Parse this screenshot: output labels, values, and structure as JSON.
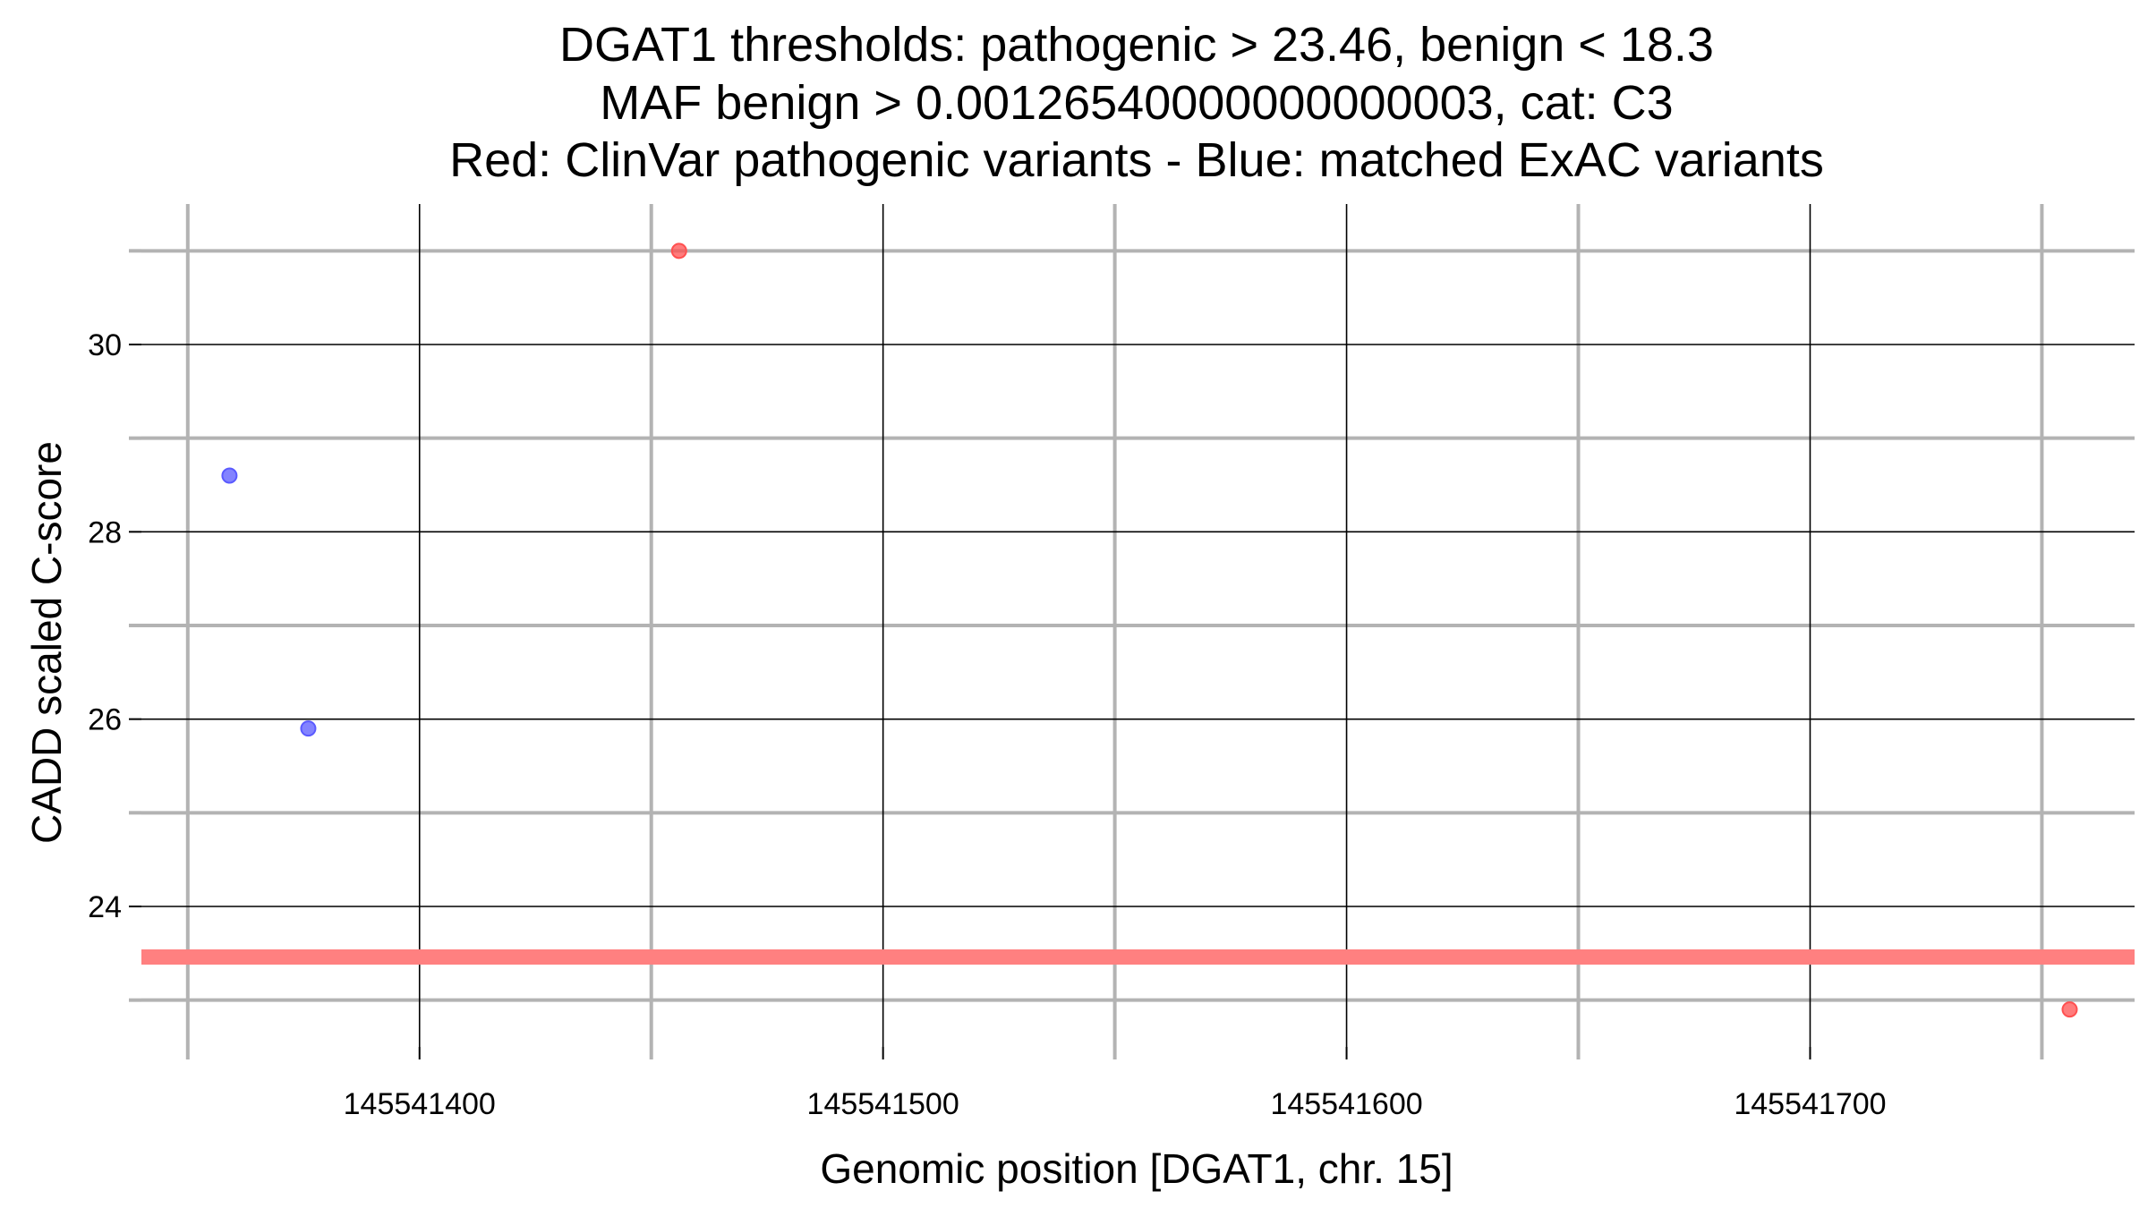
{
  "chart_data": {
    "type": "scatter",
    "title_lines": [
      "DGAT1 thresholds: pathogenic > 23.46, benign < 18.3",
      "MAF benign > 0.00126540000000000003, cat: C3",
      "Red: ClinVar pathogenic variants - Blue: matched ExAC variants"
    ],
    "xlabel": "Genomic position [DGAT1, chr. 15]",
    "ylabel": "CADD scaled C-score",
    "xlim": [
      145541340,
      145541770
    ],
    "ylim": [
      22.5,
      31.5
    ],
    "x_ticks": [
      145541400,
      145541500,
      145541600,
      145541700
    ],
    "x_tick_labels": [
      "145541400",
      "145541500",
      "145541600",
      "145541700"
    ],
    "x_minor_ticks": [
      145541350,
      145541450,
      145541550,
      145541650,
      145541750
    ],
    "y_ticks": [
      24,
      26,
      28,
      30
    ],
    "y_tick_labels": [
      "24",
      "26",
      "28",
      "30"
    ],
    "y_minor_ticks": [
      23,
      25,
      27,
      29,
      31
    ],
    "grid": true,
    "threshold_line": {
      "y": 23.46,
      "color": "#ff8080"
    },
    "series": [
      {
        "color": "#ff5050",
        "points": [
          {
            "x": 145541456,
            "y": 31.0
          },
          {
            "x": 145541756,
            "y": 22.9
          }
        ]
      },
      {
        "color": "#5a5aff",
        "points": [
          {
            "x": 145541359,
            "y": 28.6
          },
          {
            "x": 145541376,
            "y": 25.9
          }
        ]
      }
    ]
  }
}
